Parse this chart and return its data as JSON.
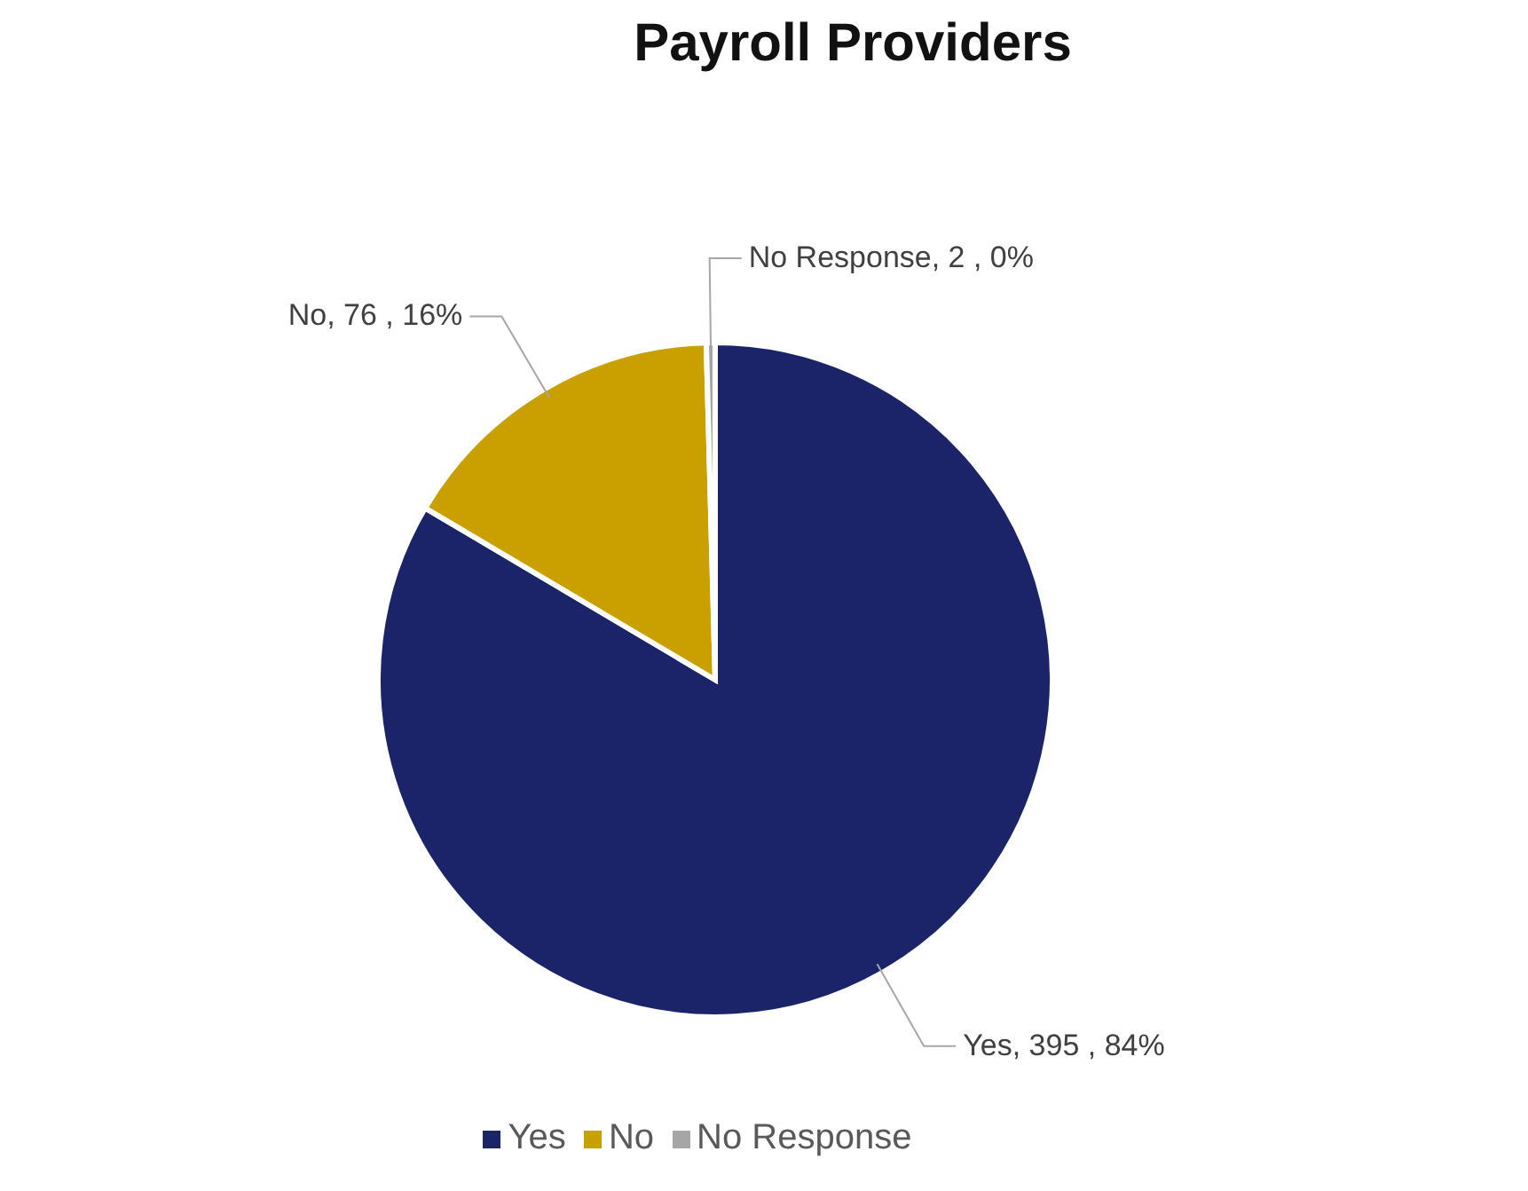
{
  "chart_data": {
    "type": "pie",
    "title": "Payroll Providers",
    "categories": [
      "Yes",
      "No",
      "No Response"
    ],
    "values": [
      395,
      76,
      2
    ],
    "colors": [
      "#1c2469",
      "#c9a000",
      "#a6a6a6"
    ],
    "value_labels": [
      "Yes,  395 , 84%",
      "No,  76 , 16%",
      "No Response,  2 , 0%"
    ],
    "legend": "bottom"
  }
}
